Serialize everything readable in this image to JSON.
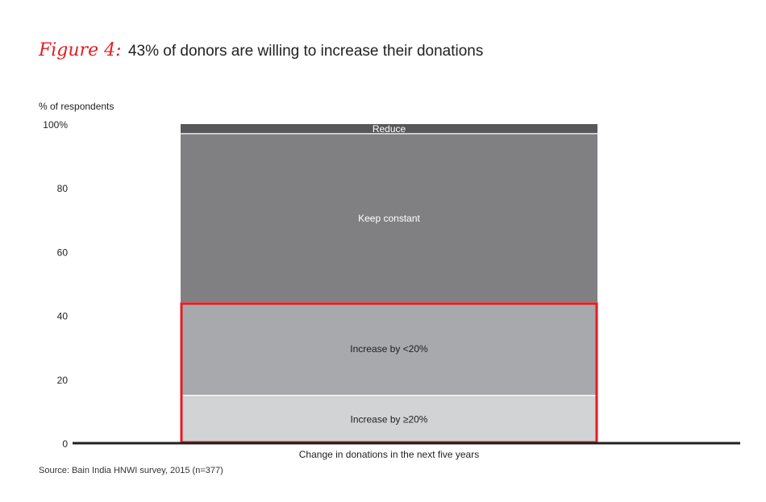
{
  "figure": {
    "label": "Figure 4:",
    "title": "43% of donors are willing to increase their donations"
  },
  "source": "Source: Bain India HNWI survey, 2015 (n=377)",
  "colors": {
    "accent": "#e31d24",
    "reduce": "#58585a",
    "keep_constant": "#808083",
    "increase_lt20": "#a7a9ac",
    "increase_ge20": "#d1d3d4",
    "axis": "#231f20"
  },
  "chart_data": {
    "type": "bar",
    "stacked": true,
    "ylabel": "% of respondents",
    "xlabel": "Change in donations in the next five years",
    "ylim": [
      0,
      100
    ],
    "yticks": [
      "0",
      "20",
      "40",
      "60",
      "80",
      "100%"
    ],
    "categories": [
      ""
    ],
    "series": [
      {
        "name": "Increase by ≥20%",
        "values": [
          15
        ]
      },
      {
        "name": "Increase by <20%",
        "values": [
          29
        ]
      },
      {
        "name": "Keep constant",
        "values": [
          53
        ]
      },
      {
        "name": "Reduce",
        "values": [
          3
        ]
      }
    ],
    "highlight": {
      "from": 0,
      "to": 44,
      "color": "#e31d24"
    },
    "grid": false,
    "legend": "none"
  }
}
